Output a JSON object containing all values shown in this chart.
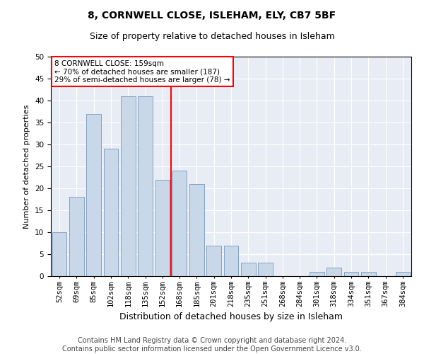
{
  "title1": "8, CORNWELL CLOSE, ISLEHAM, ELY, CB7 5BF",
  "title2": "Size of property relative to detached houses in Isleham",
  "xlabel": "Distribution of detached houses by size in Isleham",
  "ylabel": "Number of detached properties",
  "categories": [
    "52sqm",
    "69sqm",
    "85sqm",
    "102sqm",
    "118sqm",
    "135sqm",
    "152sqm",
    "168sqm",
    "185sqm",
    "201sqm",
    "218sqm",
    "235sqm",
    "251sqm",
    "268sqm",
    "284sqm",
    "301sqm",
    "318sqm",
    "334sqm",
    "351sqm",
    "367sqm",
    "384sqm"
  ],
  "values": [
    10,
    18,
    37,
    29,
    41,
    41,
    22,
    24,
    21,
    7,
    7,
    3,
    3,
    0,
    0,
    1,
    2,
    1,
    1,
    0,
    1
  ],
  "bar_color": "#c8d8e8",
  "bar_edge_color": "#7799bb",
  "vline_color": "red",
  "annotation_text": "8 CORNWELL CLOSE: 159sqm\n← 70% of detached houses are smaller (187)\n29% of semi-detached houses are larger (78) →",
  "annotation_box_color": "white",
  "annotation_box_edge_color": "red",
  "footer1": "Contains HM Land Registry data © Crown copyright and database right 2024.",
  "footer2": "Contains public sector information licensed under the Open Government Licence v3.0.",
  "ylim": [
    0,
    50
  ],
  "yticks": [
    0,
    5,
    10,
    15,
    20,
    25,
    30,
    35,
    40,
    45,
    50
  ],
  "background_color": "#e8edf5",
  "grid_color": "white",
  "title1_fontsize": 10,
  "title2_fontsize": 9,
  "xlabel_fontsize": 9,
  "ylabel_fontsize": 8,
  "tick_fontsize": 7.5,
  "footer_fontsize": 7
}
